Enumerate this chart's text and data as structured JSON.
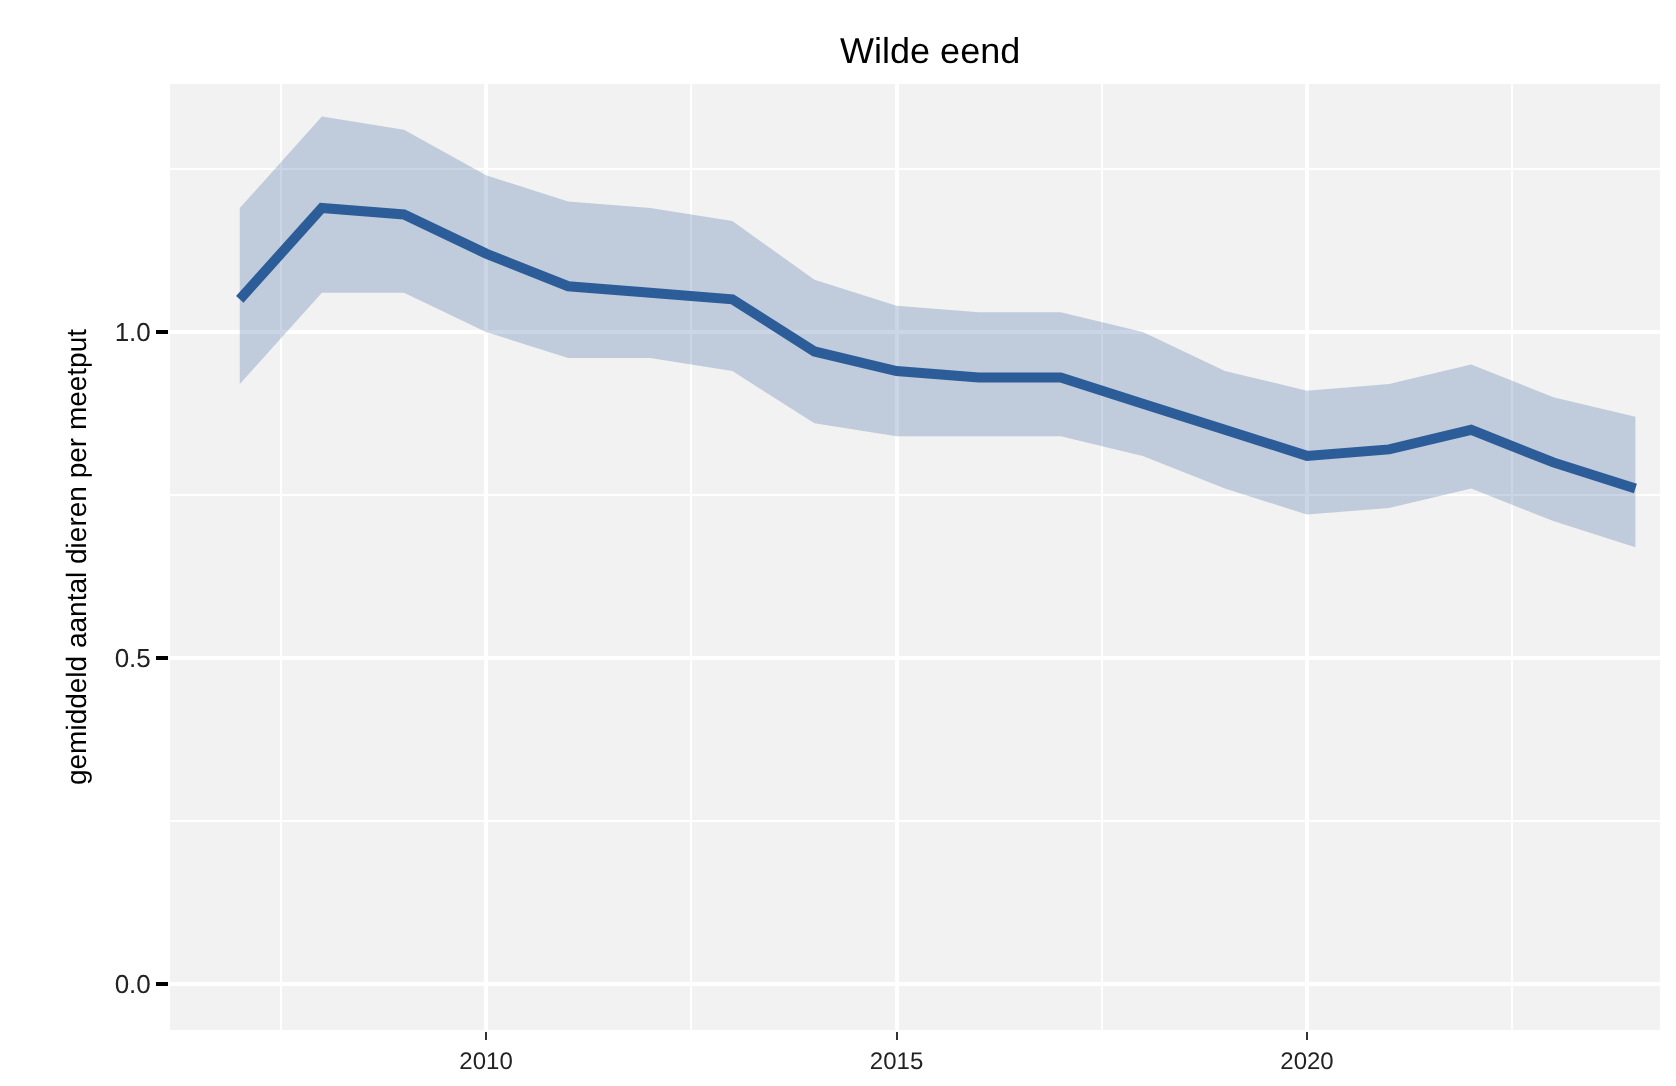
{
  "chart_data": {
    "type": "line",
    "title": "Wilde eend",
    "ylabel": "gemiddeld aantal dieren per meetput",
    "x": [
      2007,
      2008,
      2009,
      2010,
      2011,
      2012,
      2013,
      2014,
      2015,
      2016,
      2017,
      2018,
      2019,
      2020,
      2021,
      2022,
      2023,
      2024
    ],
    "series": [
      {
        "color": "#2c5d99",
        "values": [
          1.05,
          1.19,
          1.18,
          1.12,
          1.07,
          1.06,
          1.05,
          0.97,
          0.94,
          0.93,
          0.93,
          0.89,
          0.85,
          0.81,
          0.82,
          0.85,
          0.8,
          0.76
        ],
        "lower": [
          0.92,
          1.06,
          1.06,
          1.0,
          0.96,
          0.96,
          0.94,
          0.86,
          0.84,
          0.84,
          0.84,
          0.81,
          0.76,
          0.72,
          0.73,
          0.76,
          0.71,
          0.67
        ],
        "upper": [
          1.19,
          1.33,
          1.31,
          1.24,
          1.2,
          1.19,
          1.17,
          1.08,
          1.04,
          1.03,
          1.03,
          1.0,
          0.94,
          0.91,
          0.92,
          0.95,
          0.9,
          0.87
        ]
      }
    ],
    "xlim": [
      2006.15,
      2024.3
    ],
    "xticks": [
      2010,
      2015,
      2020
    ],
    "ylim": [
      -0.07,
      1.38
    ],
    "yticks": [
      {
        "value": 0,
        "label": "0.0"
      },
      {
        "value": 0.5,
        "label": "0.5"
      },
      {
        "value": 1,
        "label": "1.0"
      }
    ],
    "grid": true,
    "marker": "none",
    "line_style": "solid"
  }
}
